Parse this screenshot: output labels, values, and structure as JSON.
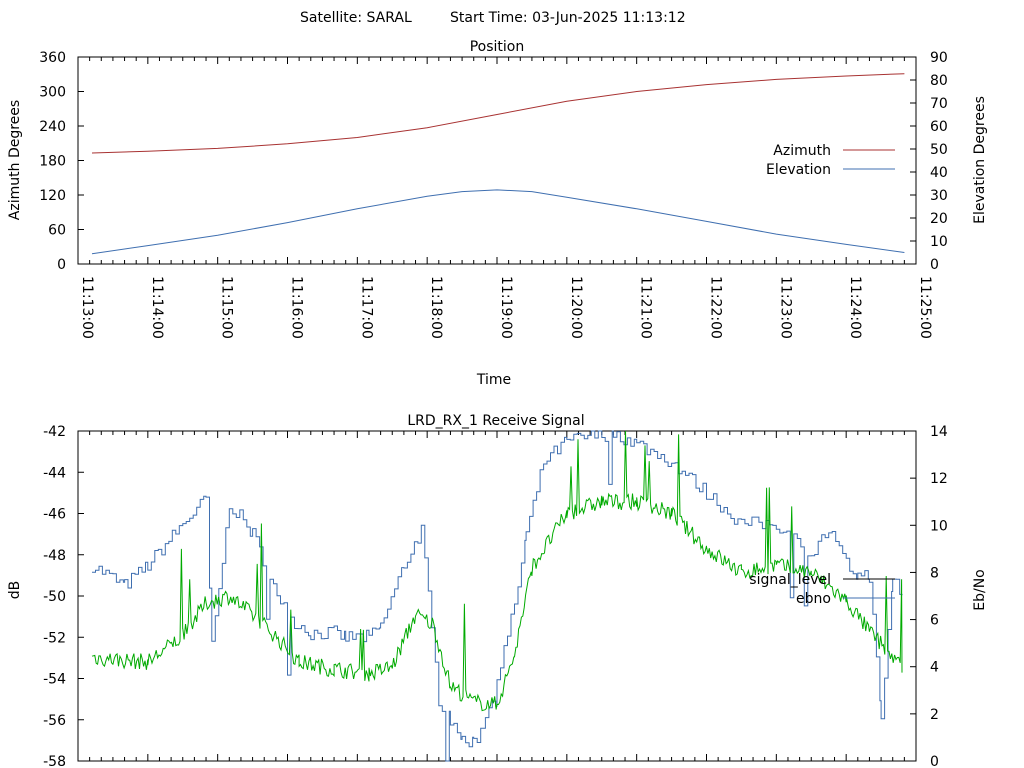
{
  "header": {
    "satellite": "Satellite: SARAL",
    "start_time": "Start Time: 03-Jun-2025 11:13:12"
  },
  "colors": {
    "azimuth": "#a83232",
    "elevation": "#3f6fb0",
    "signal_level": "#3f6fb0",
    "ebno": "#00aa00",
    "legend_signal_level": "#000000",
    "legend_ebno": "#3f6fb0"
  },
  "chart_data": [
    {
      "type": "line",
      "title": "Position",
      "xlabel": "Time",
      "ylabel": "Azimuth Degrees",
      "y2label": "Elevation Degrees",
      "xlim": [
        "11:13:00",
        "11:25:00"
      ],
      "ylim": [
        0,
        360
      ],
      "y2lim": [
        0,
        90
      ],
      "x_ticks": [
        "11:13:00",
        "11:14:00",
        "11:15:00",
        "11:16:00",
        "11:17:00",
        "11:18:00",
        "11:19:00",
        "11:20:00",
        "11:21:00",
        "11:22:00",
        "11:23:00",
        "11:24:00",
        "11:25:00"
      ],
      "y_ticks": [
        0,
        60,
        120,
        180,
        240,
        300,
        360
      ],
      "y2_ticks": [
        0,
        10,
        20,
        30,
        40,
        50,
        60,
        70,
        80,
        90
      ],
      "legend_position": "right",
      "grid": false,
      "series": [
        {
          "name": "Azimuth",
          "axis": "left",
          "x": [
            "11:13:12",
            "11:14:00",
            "11:15:00",
            "11:16:00",
            "11:17:00",
            "11:18:00",
            "11:19:00",
            "11:20:00",
            "11:21:00",
            "11:22:00",
            "11:23:00",
            "11:24:00",
            "11:24:50"
          ],
          "y": [
            193,
            196,
            201,
            209,
            220,
            237,
            260,
            283,
            300,
            312,
            321,
            327,
            331
          ]
        },
        {
          "name": "Elevation",
          "axis": "right",
          "x": [
            "11:13:12",
            "11:14:00",
            "11:15:00",
            "11:16:00",
            "11:17:00",
            "11:18:00",
            "11:18:30",
            "11:19:00",
            "11:19:30",
            "11:20:00",
            "11:21:00",
            "11:22:00",
            "11:23:00",
            "11:24:00",
            "11:24:50"
          ],
          "y": [
            4.5,
            8,
            12.5,
            18,
            24,
            29.5,
            31.5,
            32.2,
            31.5,
            29,
            24,
            18.5,
            13,
            8.5,
            5
          ]
        }
      ]
    },
    {
      "type": "line",
      "title": "LRD_RX_1 Receive Signal",
      "ylabel": "dB",
      "y2label": "Eb/No",
      "ylim": [
        -58,
        -42
      ],
      "y2lim": [
        0,
        14
      ],
      "y_ticks": [
        -58,
        -56,
        -54,
        -52,
        -50,
        -48,
        -46,
        -44,
        -42
      ],
      "y2_ticks": [
        0,
        2,
        4,
        6,
        8,
        10,
        12,
        14
      ],
      "legend_position": "right",
      "grid": false,
      "series": [
        {
          "name": "signal_level",
          "axis": "left",
          "x": [
            "11:13:12",
            "11:13:40",
            "11:14:00",
            "11:14:30",
            "11:14:50",
            "11:14:55",
            "11:15:10",
            "11:15:30",
            "11:16:00",
            "11:16:20",
            "11:16:40",
            "11:16:50",
            "11:17:10",
            "11:17:20",
            "11:17:40",
            "11:17:55",
            "11:18:10",
            "11:18:20",
            "11:18:30",
            "11:18:40",
            "11:18:50",
            "11:19:00",
            "11:19:15",
            "11:19:25",
            "11:19:40",
            "11:20:00",
            "11:20:15",
            "11:20:40",
            "11:21:00",
            "11:21:30",
            "11:22:00",
            "11:22:30",
            "11:23:00",
            "11:23:30",
            "11:23:45",
            "11:24:00",
            "11:24:10",
            "11:24:20",
            "11:24:30",
            "11:24:40",
            "11:24:48"
          ],
          "y": [
            -48.5,
            -49.5,
            -48.5,
            -46.5,
            -45.3,
            -52.5,
            -45.5,
            -47,
            -51,
            -51.8,
            -51.8,
            -52,
            -52,
            -51.5,
            -48.5,
            -46.8,
            -55,
            -56,
            -57,
            -57.2,
            -56,
            -54,
            -50.5,
            -47,
            -43.5,
            -42.5,
            -42.3,
            -42.1,
            -42.6,
            -43.5,
            -45,
            -46.5,
            -46.5,
            -48,
            -46.8,
            -48.5,
            -49,
            -49,
            -56,
            -49,
            -50
          ]
        },
        {
          "name": "ebno",
          "axis": "right",
          "x": [
            "11:13:12",
            "11:13:30",
            "11:14:00",
            "11:14:30",
            "11:14:50",
            "11:15:10",
            "11:15:40",
            "11:16:10",
            "11:16:40",
            "11:17:10",
            "11:17:30",
            "11:17:50",
            "11:18:05",
            "11:18:20",
            "11:18:40",
            "11:19:00",
            "11:19:15",
            "11:19:30",
            "11:20:00",
            "11:20:30",
            "11:21:00",
            "11:21:30",
            "11:22:00",
            "11:22:30",
            "11:23:00",
            "11:23:30",
            "11:24:00",
            "11:24:20",
            "11:24:48"
          ],
          "y": [
            4.4,
            4.3,
            4.2,
            5.3,
            6.7,
            7,
            5.8,
            4.2,
            3.9,
            3.7,
            4,
            6.2,
            5.8,
            3.2,
            2.5,
            2.4,
            4.5,
            8.2,
            10.5,
            11,
            11,
            10.5,
            9,
            8,
            8.3,
            8,
            6.8,
            5.5,
            4.0
          ]
        }
      ]
    }
  ]
}
